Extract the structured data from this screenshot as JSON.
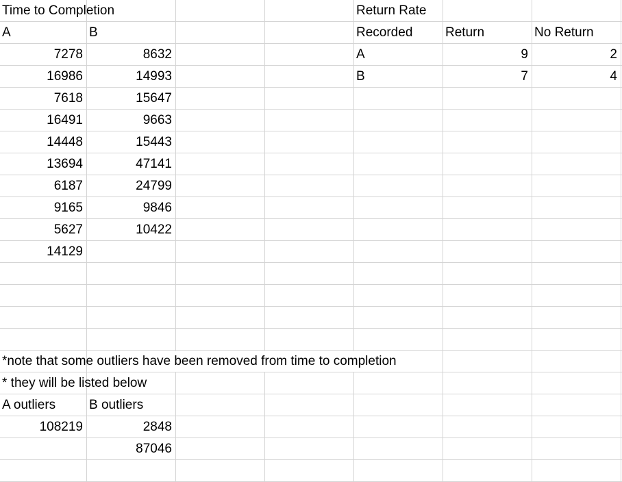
{
  "time_to_completion": {
    "title": "Time to Completion",
    "col_a_header": "A",
    "col_b_header": "B",
    "a_values": [
      "7278",
      "16986",
      "7618",
      "16491",
      "14448",
      "13694",
      "6187",
      "9165",
      "5627",
      "14129"
    ],
    "b_values": [
      "8632",
      "14993",
      "15647",
      "9663",
      "15443",
      "47141",
      "24799",
      "9846",
      "10422"
    ]
  },
  "return_rate": {
    "title": "Return Rate",
    "header_recorded": "Recorded",
    "header_return": "Return",
    "header_no_return": "No Return",
    "rows": [
      {
        "label": "A",
        "return": "9",
        "no_return": "2"
      },
      {
        "label": "B",
        "return": "7",
        "no_return": "4"
      }
    ]
  },
  "notes": {
    "line1": "*note that some outliers have been removed from time to completion",
    "line2": "* they will be listed below"
  },
  "outliers": {
    "a_header": "A outliers",
    "b_header": "B outliers",
    "a_values": [
      "108219"
    ],
    "b_values": [
      "2848",
      "87046"
    ]
  }
}
